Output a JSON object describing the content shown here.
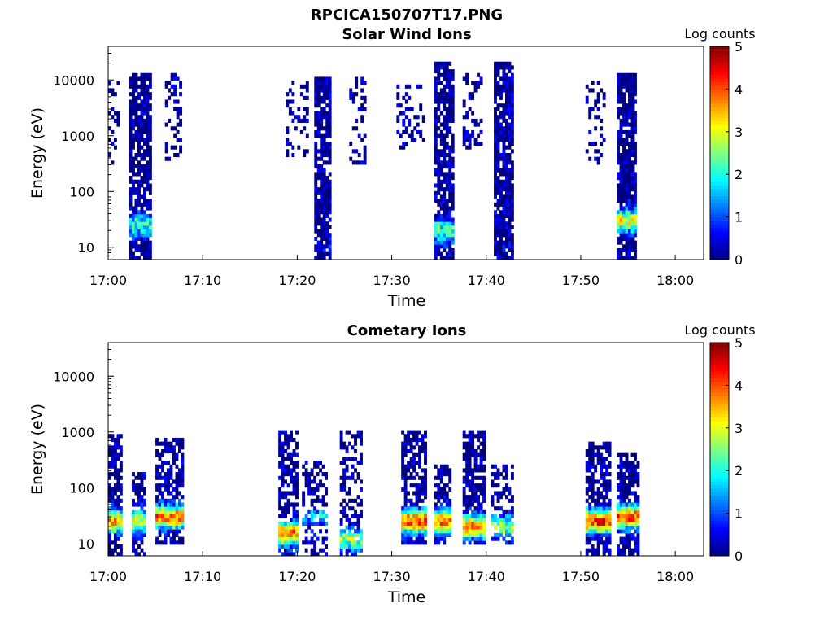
{
  "figure": {
    "title": "RPCICA150707T17.PNG"
  },
  "colorbar": {
    "label": "Log counts",
    "ticks": [
      0,
      1,
      2,
      3,
      4,
      5
    ],
    "colormap": "jet"
  },
  "chart_data": [
    {
      "type": "heatmap",
      "title": "Solar Wind Ions",
      "xlabel": "Time",
      "ylabel": "Energy (eV)",
      "x_tick_labels": [
        "17:00",
        "17:10",
        "17:20",
        "17:30",
        "17:40",
        "17:50",
        "18:00"
      ],
      "y_tick_labels": [
        "10",
        "100",
        "1000",
        "10000"
      ],
      "y_scale": "log",
      "ylim": [
        6,
        40000
      ],
      "xlim_minutes": [
        0,
        63
      ],
      "clim": [
        0,
        5
      ],
      "bursts": [
        {
          "t0": 0.0,
          "t1": 1.2,
          "emin": 300,
          "emax": 9000,
          "peak": 0,
          "peak_e": 3000,
          "fill": 0.3
        },
        {
          "t0": 2.2,
          "t1": 4.5,
          "emin": 6,
          "emax": 13000,
          "peak": 2.0,
          "peak_e": 25,
          "fill": 0.8
        },
        {
          "t0": 6.0,
          "t1": 7.8,
          "emin": 350,
          "emax": 13000,
          "peak": 0,
          "peak_e": 2000,
          "fill": 0.3
        },
        {
          "t0": 18.8,
          "t1": 21.0,
          "emin": 400,
          "emax": 10000,
          "peak": 0,
          "peak_e": 3000,
          "fill": 0.25
        },
        {
          "t0": 21.8,
          "t1": 23.6,
          "emin": 6,
          "emax": 12000,
          "peak": 0.3,
          "peak_e": 10,
          "fill": 0.85
        },
        {
          "t0": 25.5,
          "t1": 27.2,
          "emin": 300,
          "emax": 12000,
          "peak": 0,
          "peak_e": 2000,
          "fill": 0.3
        },
        {
          "t0": 30.5,
          "t1": 33.5,
          "emin": 600,
          "emax": 10000,
          "peak": 0,
          "peak_e": 3000,
          "fill": 0.25
        },
        {
          "t0": 34.5,
          "t1": 36.6,
          "emin": 6,
          "emax": 20000,
          "peak": 2.2,
          "peak_e": 20,
          "fill": 0.85
        },
        {
          "t0": 37.5,
          "t1": 39.5,
          "emin": 600,
          "emax": 14000,
          "peak": 0,
          "peak_e": 2000,
          "fill": 0.3
        },
        {
          "t0": 40.8,
          "t1": 42.8,
          "emin": 6,
          "emax": 20000,
          "peak": 0.2,
          "peak_e": 10,
          "fill": 0.85
        },
        {
          "t0": 50.5,
          "t1": 52.5,
          "emin": 300,
          "emax": 10000,
          "peak": 0,
          "peak_e": 2000,
          "fill": 0.3
        },
        {
          "t0": 53.8,
          "t1": 55.8,
          "emin": 6,
          "emax": 14000,
          "peak": 3.0,
          "peak_e": 30,
          "fill": 0.85
        }
      ]
    },
    {
      "type": "heatmap",
      "title": "Cometary Ions",
      "xlabel": "Time",
      "ylabel": "Energy (eV)",
      "x_tick_labels": [
        "17:00",
        "17:10",
        "17:20",
        "17:30",
        "17:40",
        "17:50",
        "18:00"
      ],
      "y_tick_labels": [
        "10",
        "100",
        "1000",
        "10000"
      ],
      "y_scale": "log",
      "ylim": [
        6,
        40000
      ],
      "xlim_minutes": [
        0,
        63
      ],
      "clim": [
        0,
        5
      ],
      "bursts": [
        {
          "t0": 0.0,
          "t1": 1.3,
          "emin": 6,
          "emax": 900,
          "peak": 3.5,
          "peak_e": 25,
          "fill": 0.7
        },
        {
          "t0": 2.5,
          "t1": 3.8,
          "emin": 6,
          "emax": 200,
          "peak": 3.0,
          "peak_e": 25,
          "fill": 0.7
        },
        {
          "t0": 5.0,
          "t1": 7.8,
          "emin": 10,
          "emax": 800,
          "peak": 3.8,
          "peak_e": 30,
          "fill": 0.7
        },
        {
          "t0": 18.0,
          "t1": 20.0,
          "emin": 6,
          "emax": 1100,
          "peak": 3.8,
          "peak_e": 15,
          "fill": 0.7
        },
        {
          "t0": 20.5,
          "t1": 23.0,
          "emin": 6,
          "emax": 300,
          "peak": 1.5,
          "peak_e": 30,
          "fill": 0.4
        },
        {
          "t0": 24.5,
          "t1": 26.8,
          "emin": 6,
          "emax": 1100,
          "peak": 2.5,
          "peak_e": 12,
          "fill": 0.5
        },
        {
          "t0": 31.0,
          "t1": 33.5,
          "emin": 10,
          "emax": 1000,
          "peak": 4.0,
          "peak_e": 25,
          "fill": 0.7
        },
        {
          "t0": 34.5,
          "t1": 36.2,
          "emin": 10,
          "emax": 250,
          "peak": 3.8,
          "peak_e": 25,
          "fill": 0.7
        },
        {
          "t0": 37.5,
          "t1": 39.8,
          "emin": 10,
          "emax": 1100,
          "peak": 3.8,
          "peak_e": 20,
          "fill": 0.7
        },
        {
          "t0": 40.5,
          "t1": 42.8,
          "emin": 10,
          "emax": 250,
          "peak": 2.5,
          "peak_e": 20,
          "fill": 0.5
        },
        {
          "t0": 50.5,
          "t1": 53.0,
          "emin": 6,
          "emax": 700,
          "peak": 4.2,
          "peak_e": 25,
          "fill": 0.75
        },
        {
          "t0": 53.8,
          "t1": 56.0,
          "emin": 6,
          "emax": 400,
          "peak": 4.0,
          "peak_e": 30,
          "fill": 0.75
        }
      ]
    }
  ]
}
